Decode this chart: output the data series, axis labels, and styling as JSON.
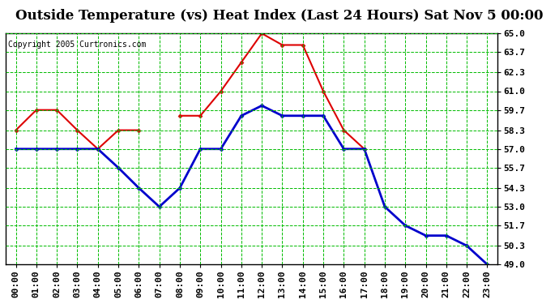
{
  "title": "Outside Temperature (vs) Heat Index (Last 24 Hours) Sat Nov 5 00:00",
  "copyright": "Copyright 2005 Curtronics.com",
  "x_labels": [
    "00:00",
    "01:00",
    "02:00",
    "03:00",
    "04:00",
    "05:00",
    "06:00",
    "07:00",
    "08:00",
    "09:00",
    "10:00",
    "11:00",
    "12:00",
    "13:00",
    "14:00",
    "15:00",
    "16:00",
    "17:00",
    "18:00",
    "19:00",
    "20:00",
    "21:00",
    "22:00",
    "23:00"
  ],
  "red_data": [
    58.3,
    59.7,
    59.7,
    58.3,
    57.0,
    58.3,
    58.3,
    null,
    59.3,
    59.3,
    61.0,
    63.0,
    65.0,
    64.2,
    64.2,
    61.0,
    58.3,
    57.0,
    null,
    null,
    null,
    null,
    null,
    null
  ],
  "blue_data": [
    57.0,
    57.0,
    57.0,
    57.0,
    57.0,
    55.7,
    54.3,
    53.0,
    54.3,
    57.0,
    57.0,
    59.3,
    60.0,
    59.3,
    59.3,
    59.3,
    57.0,
    57.0,
    53.0,
    51.7,
    51.0,
    51.0,
    50.3,
    49.0
  ],
  "ylim": [
    49.0,
    65.0
  ],
  "yticks": [
    49.0,
    50.3,
    51.7,
    53.0,
    54.3,
    55.7,
    57.0,
    58.3,
    59.7,
    61.0,
    62.3,
    63.7,
    65.0
  ],
  "bg_color": "#ffffff",
  "plot_bg_color": "#ffffff",
  "grid_color": "#00bb00",
  "red_color": "#dd0000",
  "blue_color": "#0000cc",
  "title_fontsize": 12,
  "tick_fontsize": 8,
  "copyright_fontsize": 7
}
